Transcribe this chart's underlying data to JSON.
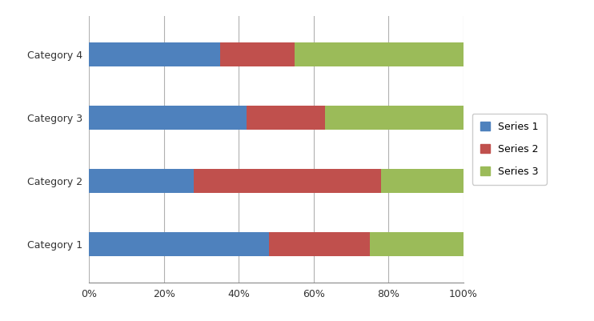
{
  "categories": [
    "Category 1",
    "Category 2",
    "Category 3",
    "Category 4"
  ],
  "series": {
    "Series 1": [
      48,
      28,
      42,
      35
    ],
    "Series 2": [
      27,
      50,
      21,
      20
    ],
    "Series 3": [
      25,
      22,
      37,
      45
    ]
  },
  "colors": {
    "Series 1": "#4E81BD",
    "Series 2": "#C0504D",
    "Series 3": "#9BBB59"
  },
  "legend_labels": [
    "Series 1",
    "Series 2",
    "Series 3"
  ],
  "xlim": [
    0,
    100
  ],
  "xticks": [
    0,
    20,
    40,
    60,
    80,
    100
  ],
  "xtick_labels": [
    "0%",
    "20%",
    "40%",
    "60%",
    "80%",
    "100%"
  ],
  "bar_height": 0.38,
  "background_color": "#ffffff",
  "grid_color": "#b0b0b0",
  "figsize": [
    7.42,
    4.01
  ],
  "dpi": 100
}
